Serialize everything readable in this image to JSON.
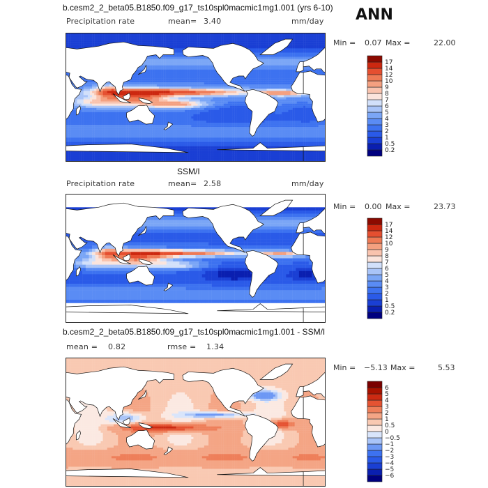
{
  "season": "ANN",
  "chart_data": [
    {
      "type": "heatmap",
      "title": "b.cesm2_2_beta05.B1850.f09_g17_ts10spl0macmic1mg1.001 (yrs 6-10)",
      "variable": "Precipitation rate",
      "mean_label": "mean=",
      "mean_value": "3.40",
      "units": "mm/day",
      "min_label": "Min =",
      "min_value": "0.07",
      "max_label": "Max =",
      "max_value": "22.00",
      "colorbar_levels": [
        "0.2",
        "0.5",
        "1",
        "2",
        "3",
        "4",
        "5",
        "6",
        "7",
        "8",
        "9",
        "10",
        "12",
        "14",
        "17"
      ],
      "colorbar_colors": [
        "#00007f",
        "#0a1fb0",
        "#1a3fd4",
        "#2a5ae8",
        "#3d72f0",
        "#5a8cf4",
        "#7ba6f6",
        "#a9c4f8",
        "#d2e0fa",
        "#fbe4dc",
        "#f9c3ae",
        "#f4a080",
        "#ee7a55",
        "#e54f30",
        "#cc2810",
        "#8c0a00"
      ]
    },
    {
      "type": "heatmap",
      "title": "SSM/I",
      "variable": "Precipitation rate",
      "mean_label": "mean=",
      "mean_value": "2.58",
      "units": "mm/day",
      "min_label": "Min =",
      "min_value": "0.00",
      "max_label": "Max =",
      "max_value": "23.73",
      "colorbar_levels": [
        "0.2",
        "0.5",
        "1",
        "2",
        "3",
        "4",
        "5",
        "6",
        "7",
        "8",
        "9",
        "10",
        "12",
        "14",
        "17"
      ],
      "colorbar_colors": [
        "#00007f",
        "#0a1fb0",
        "#1a3fd4",
        "#2a5ae8",
        "#3d72f0",
        "#5a8cf4",
        "#7ba6f6",
        "#a9c4f8",
        "#d2e0fa",
        "#fbe4dc",
        "#f9c3ae",
        "#f4a080",
        "#ee7a55",
        "#e54f30",
        "#cc2810",
        "#8c0a00"
      ]
    },
    {
      "type": "heatmap",
      "title": "b.cesm2_2_beta05.B1850.f09_g17_ts10spl0macmic1mg1.001 - SSM/I",
      "mean_label": "mean =",
      "mean_value": "0.82",
      "rmse_label": "rmse =",
      "rmse_value": "1.34",
      "min_label": "Min =",
      "min_value": "−5.13",
      "max_label": "Max =",
      "max_value": "5.53",
      "colorbar_levels": [
        "−6",
        "−5",
        "−4",
        "−3",
        "−2",
        "−1",
        "−0.5",
        "0",
        "0.5",
        "1",
        "2",
        "3",
        "4",
        "5",
        "6"
      ],
      "colorbar_colors": [
        "#00007f",
        "#0a1fb0",
        "#1a3fd4",
        "#2a5ae8",
        "#3d72f0",
        "#6d98f4",
        "#a9c4f8",
        "#d9e5fb",
        "#fbe9e2",
        "#f9c9b2",
        "#f4a585",
        "#ee7f5a",
        "#e55332",
        "#cc2a12",
        "#a81200",
        "#7a0000"
      ]
    }
  ]
}
